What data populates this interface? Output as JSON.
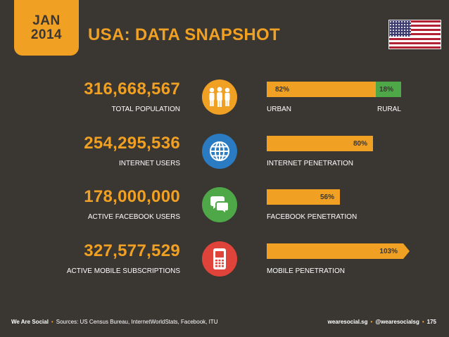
{
  "header": {
    "month": "JAN",
    "year": "2014",
    "title": "USA: DATA SNAPSHOT"
  },
  "colors": {
    "orange": "#f0a023",
    "green": "#4ea848",
    "blue": "#2a7bc2",
    "red": "#e0433a",
    "background": "#3a3733"
  },
  "rows": [
    {
      "value": "316,668,567",
      "label": "TOTAL POPULATION",
      "icon": "people-icon",
      "bar": {
        "percent_label": "82%",
        "value": 82,
        "second_percent_label": "18%",
        "second_value": 18,
        "left_label": "URBAN",
        "right_label": "RURAL"
      }
    },
    {
      "value": "254,295,536",
      "label": "INTERNET USERS",
      "icon": "globe-icon",
      "bar": {
        "percent_label": "80%",
        "value": 80,
        "left_label": "INTERNET PENETRATION"
      }
    },
    {
      "value": "178,000,000",
      "label": "ACTIVE FACEBOOK USERS",
      "icon": "chat-bubbles-icon",
      "bar": {
        "percent_label": "56%",
        "value": 56,
        "left_label": "FACEBOOK PENETRATION"
      }
    },
    {
      "value": "327,577,529",
      "label": "ACTIVE MOBILE SUBSCRIPTIONS",
      "icon": "mobile-phone-icon",
      "bar": {
        "percent_label": "103%",
        "value": 103,
        "left_label": "MOBILE PENETRATION"
      }
    }
  ],
  "footer": {
    "brand": "We Are Social",
    "sources": "Sources: US Census Bureau, InternetWorldStats, Facebook, ITU",
    "site": "wearesocial.sg",
    "handle": "@wearesocialsg",
    "page": "175"
  }
}
